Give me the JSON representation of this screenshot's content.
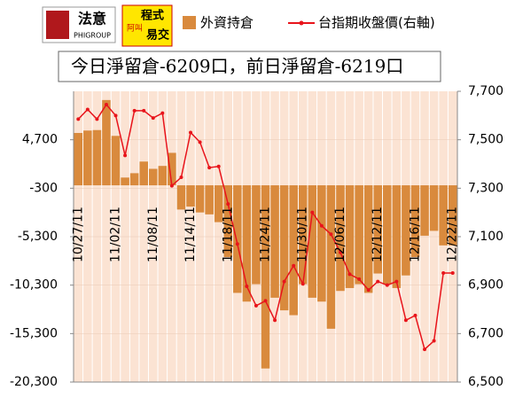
{
  "header": {
    "logo1": "法意",
    "logo1_sub": "PHIGROUP",
    "logo2_a": "程式",
    "logo2_b": "阿叫",
    "logo2_c": "易交"
  },
  "chart_data": {
    "type": "bar",
    "title": "今日淨留倉-6209口，前日淨留倉-6219口",
    "categories": [
      "10/27/11",
      null,
      null,
      null,
      "11/02/11",
      null,
      null,
      null,
      "11/08/11",
      null,
      null,
      null,
      "11/14/11",
      null,
      null,
      null,
      "11/18/11",
      null,
      null,
      null,
      "11/24/11",
      null,
      null,
      null,
      "11/30/11",
      null,
      null,
      null,
      "12/06/11",
      null,
      null,
      null,
      "12/12/11",
      null,
      null,
      null,
      "12/16/11",
      null,
      null,
      null,
      "12/22/11"
    ],
    "series": [
      {
        "name": "外資持倉",
        "type": "bar",
        "axis": "y",
        "color": "#d98a3d",
        "values": [
          5400,
          5650,
          5700,
          8800,
          5100,
          800,
          1250,
          2450,
          1700,
          2000,
          3350,
          -2500,
          -2200,
          -2800,
          -3000,
          -3800,
          -7400,
          -11100,
          -12000,
          -10200,
          -18900,
          -11600,
          -12900,
          -13400,
          -10200,
          -11600,
          -12000,
          -14800,
          -10900,
          -10600,
          -10200,
          -11100,
          -9100,
          -10200,
          -10600,
          -9300,
          -7400,
          -5200,
          -4700,
          -6200,
          -6200
        ]
      },
      {
        "name": "台指期收盤價(右軸)",
        "type": "line",
        "axis": "y2",
        "color": "#e8141b",
        "values": [
          7585,
          7625,
          7585,
          7645,
          7600,
          7435,
          7620,
          7620,
          7590,
          7610,
          7310,
          7345,
          7530,
          7490,
          7385,
          7390,
          7235,
          7070,
          6895,
          6815,
          6835,
          6755,
          6915,
          6980,
          6905,
          7200,
          7145,
          7110,
          7035,
          6945,
          6925,
          6880,
          6915,
          6900,
          6915,
          6755,
          6775,
          6635,
          6670,
          6950,
          6950
        ]
      }
    ],
    "ylim": [
      -20300,
      9700
    ],
    "yticks": [
      {
        "value": -20300,
        "label": "-20,300"
      },
      {
        "value": -15300,
        "label": "-15,300"
      },
      {
        "value": -10300,
        "label": "-10,300"
      },
      {
        "value": -5300,
        "label": "-5,300"
      },
      -300,
      {
        "value": 4700,
        "label": "4,700"
      }
    ],
    "y2lim": [
      6500,
      7700
    ],
    "y2ticks": [
      {
        "value": 6500,
        "label": "6,500"
      },
      {
        "value": 6700,
        "label": "6,700"
      },
      {
        "value": 6900,
        "label": "6,900"
      },
      {
        "value": 7100,
        "label": "7,100"
      },
      {
        "value": 7300,
        "label": "7,300"
      },
      {
        "value": 7500,
        "label": "7,500"
      },
      {
        "value": 7700,
        "label": "7,700"
      }
    ],
    "grid": true
  }
}
